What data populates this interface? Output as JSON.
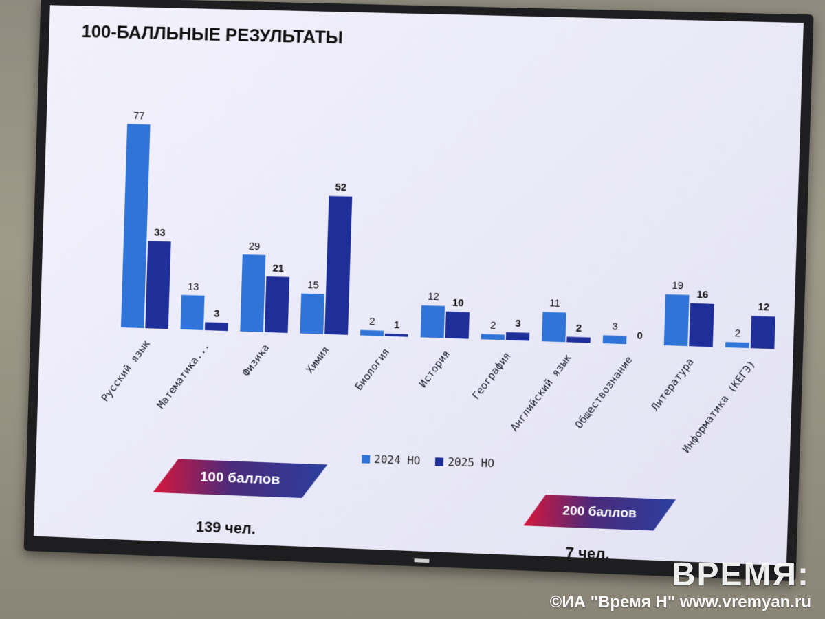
{
  "title": "100-БАЛЛЬНЫЕ РЕЗУЛЬТАТЫ",
  "chart_data": {
    "type": "bar",
    "categories": [
      "Русский язык",
      "Математика...",
      "Физика",
      "Химия",
      "Биология",
      "История",
      "География",
      "Английский язык",
      "Обществознание",
      "Литература",
      "Информатика (КЕГЭ)"
    ],
    "series": [
      {
        "name": "2024 НО",
        "color": "#2f74d6",
        "values": [
          77,
          13,
          29,
          15,
          2,
          12,
          2,
          11,
          3,
          19,
          2
        ]
      },
      {
        "name": "2025 НО",
        "color": "#1f2f9a",
        "values": [
          33,
          3,
          21,
          52,
          1,
          10,
          3,
          2,
          0,
          16,
          12
        ]
      }
    ],
    "ylim": [
      0,
      80
    ],
    "legend": "bottom",
    "grid": false
  },
  "badges": {
    "left": {
      "label": "100 баллов",
      "count": "139 чел."
    },
    "right": {
      "label": "200 баллов",
      "count": "7 чел."
    }
  },
  "watermark": {
    "logo": "ВРЕМЯ:",
    "copyright": "©ИА \"Время Н\" www.vremyan.ru"
  }
}
